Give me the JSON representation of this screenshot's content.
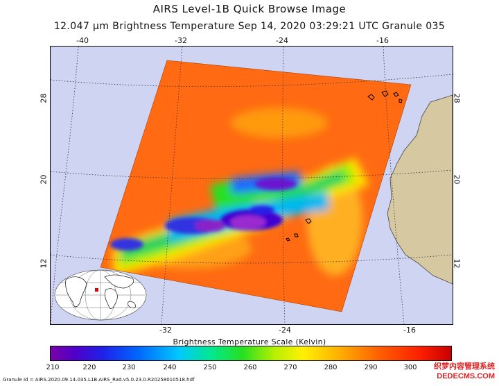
{
  "header": {
    "title": "AIRS Level-1B Quick Browse Image",
    "subtitle": "12.047 μm Brightness Temperature   Sep 14, 2020 03:29:21 UTC   Granule 035"
  },
  "map": {
    "lon_top": [
      "-40",
      "-32",
      "-24",
      "-16"
    ],
    "lon_bottom": [
      "-32",
      "-24",
      "-16"
    ],
    "lat_left": [
      "28",
      "20",
      "12"
    ],
    "lat_right": [
      "28",
      "20",
      "12"
    ],
    "colors": {
      "ocean_background": "#cfd4f2",
      "land": "#d6c9a2",
      "grid": "#333333"
    },
    "inset_globe": "world-locator-icon"
  },
  "colorbar": {
    "title": "Brightness Temperature Scale (Kelvin)",
    "ticks": [
      "210",
      "220",
      "230",
      "240",
      "250",
      "260",
      "270",
      "280",
      "290",
      "300"
    ]
  },
  "footer": {
    "granule_id": "Granule Id = AIRS.2020.09.14.035.L1B.AIRS_Rad.v5.0.23.0.R20258010518.hdf"
  },
  "watermark": {
    "line1": "织梦内容管理系统",
    "line2": "DEDECMS.COM"
  }
}
